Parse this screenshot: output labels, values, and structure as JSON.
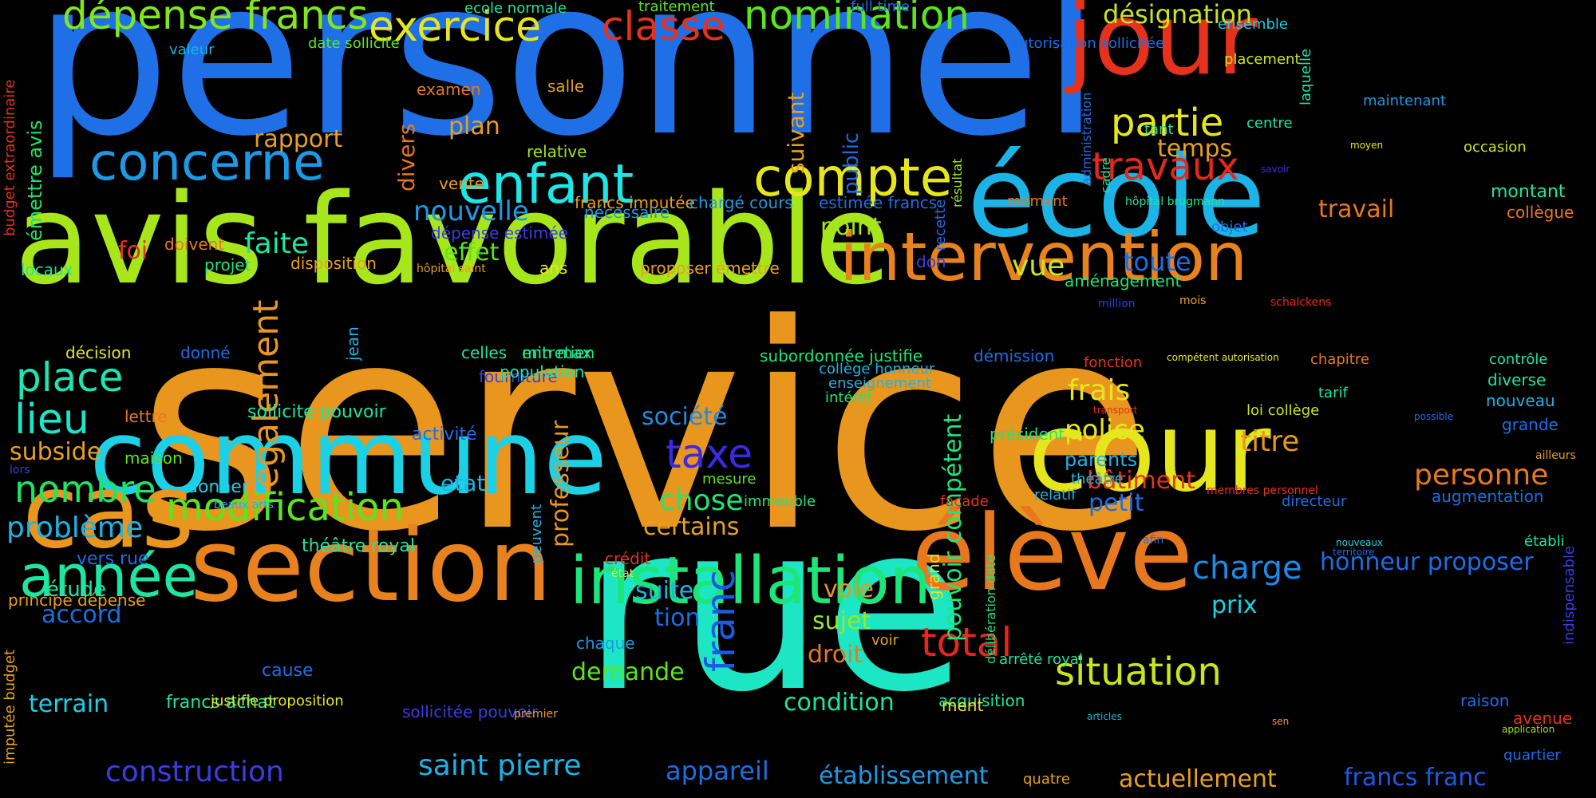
{
  "words": [
    {
      "text": "personnel",
      "color": "#1f6fe6"
    },
    {
      "text": "service",
      "color": "#e8961e"
    },
    {
      "text": "rue",
      "color": "#1ce6c4"
    },
    {
      "text": "avis favorable",
      "color": "#a8e61c"
    },
    {
      "text": "commune",
      "color": "#1cd0e6"
    },
    {
      "text": "section",
      "color": "#e8821e"
    },
    {
      "text": "cas",
      "color": "#e8961e"
    },
    {
      "text": "école",
      "color": "#1cb4e6"
    },
    {
      "text": "cour",
      "color": "#e6e61c"
    },
    {
      "text": "élève",
      "color": "#e8781e"
    },
    {
      "text": "jour",
      "color": "#e6321c"
    },
    {
      "text": "intervention",
      "color": "#e8821e"
    },
    {
      "text": "installation",
      "color": "#1ce678"
    },
    {
      "text": "enfant",
      "color": "#1ce6e6"
    },
    {
      "text": "compte",
      "color": "#e6e61c"
    },
    {
      "text": "année",
      "color": "#1ce6a0"
    },
    {
      "text": "concerne",
      "color": "#1c9ae6"
    },
    {
      "text": "modification",
      "color": "#5ae61c"
    },
    {
      "text": "dépense francs",
      "color": "#82e61c"
    },
    {
      "text": "exercice",
      "color": "#e6e61c"
    },
    {
      "text": "classe",
      "color": "#e6321c"
    },
    {
      "text": "nomination",
      "color": "#5ae61c"
    },
    {
      "text": "désignation",
      "color": "#c8e61c"
    },
    {
      "text": "partie",
      "color": "#e6e61c"
    },
    {
      "text": "travaux",
      "color": "#e6281c"
    },
    {
      "text": "situation",
      "color": "#c8e61c"
    },
    {
      "text": "total",
      "color": "#e6281c"
    },
    {
      "text": "place",
      "color": "#1ce6b4"
    },
    {
      "text": "lieu",
      "color": "#1ce6c8"
    },
    {
      "text": "nombre",
      "color": "#1ce664"
    },
    {
      "text": "problème",
      "color": "#1cb4e6"
    },
    {
      "text": "également",
      "color": "#e8961e"
    },
    {
      "text": "taxe",
      "color": "#3c28e6"
    },
    {
      "text": "franc",
      "color": "#1c5ae6"
    },
    {
      "text": "frais",
      "color": "#e6e61c"
    },
    {
      "text": "police",
      "color": "#e6e61c"
    },
    {
      "text": "titre",
      "color": "#e8961e"
    },
    {
      "text": "personne",
      "color": "#e8781e"
    },
    {
      "text": "charge",
      "color": "#1c8ce6"
    },
    {
      "text": "construction",
      "color": "#3c3ce6"
    },
    {
      "text": "saint pierre",
      "color": "#1cb4e6"
    },
    {
      "text": "appareil",
      "color": "#1c6ee6"
    },
    {
      "text": "établissement",
      "color": "#1c9ae6"
    },
    {
      "text": "actuellement",
      "color": "#e8a01e"
    },
    {
      "text": "francs franc",
      "color": "#1c5ae6"
    },
    {
      "text": "condition",
      "color": "#1ce6a0"
    },
    {
      "text": "demande",
      "color": "#5ae61c"
    },
    {
      "text": "droit",
      "color": "#e8781e"
    },
    {
      "text": "sujet",
      "color": "#a0e61c"
    },
    {
      "text": "voie",
      "color": "#e8961e"
    },
    {
      "text": "chose",
      "color": "#1ce678"
    },
    {
      "text": "certains",
      "color": "#e8a01e"
    },
    {
      "text": "société",
      "color": "#1c8ce6"
    },
    {
      "text": "etat",
      "color": "#1cb4e6"
    },
    {
      "text": "professeur",
      "color": "#e8961e"
    },
    {
      "text": "pouvoir compétent",
      "color": "#1ce678"
    },
    {
      "text": "suite",
      "color": "#1cb4e6"
    },
    {
      "text": "tion",
      "color": "#1c6ee6"
    },
    {
      "text": "prix",
      "color": "#1cd0e6"
    },
    {
      "text": "honneur proposer",
      "color": "#1c6ee6"
    },
    {
      "text": "bâtiment",
      "color": "#e6321c"
    },
    {
      "text": "petit",
      "color": "#1c6ee6"
    },
    {
      "text": "parents",
      "color": "#1cb4e6"
    },
    {
      "text": "vue",
      "color": "#c8e61c"
    },
    {
      "text": "toute",
      "color": "#1c6ee6"
    },
    {
      "text": "travail",
      "color": "#e8781e"
    },
    {
      "text": "point",
      "color": "#a0e61c"
    },
    {
      "text": "public",
      "color": "#1c6ee6"
    },
    {
      "text": "suivant",
      "color": "#e8a01e"
    },
    {
      "text": "divers",
      "color": "#e8781e"
    },
    {
      "text": "temps",
      "color": "#e8a01e"
    },
    {
      "text": "rapport",
      "color": "#e8a01e"
    },
    {
      "text": "plan",
      "color": "#e8a01e"
    },
    {
      "text": "faite",
      "color": "#1ce6a0"
    },
    {
      "text": "effet",
      "color": "#5ae61c"
    },
    {
      "text": "nouvelle",
      "color": "#1c9ae6"
    },
    {
      "text": "foi",
      "color": "#e6321c"
    },
    {
      "text": "subside",
      "color": "#e8a01e"
    },
    {
      "text": "accord",
      "color": "#1c6ee6"
    },
    {
      "text": "terrain",
      "color": "#1cd0e6"
    },
    {
      "text": "étude",
      "color": "#1ce6a0"
    },
    {
      "text": "émettre avis",
      "color": "#1ce664"
    },
    {
      "text": "budget extraordinaire",
      "color": "#e6321c"
    },
    {
      "text": "valeur",
      "color": "#1cb4e6"
    },
    {
      "text": "date sollicite",
      "color": "#5ae61c"
    },
    {
      "text": "ecole normale",
      "color": "#1ce6a0"
    },
    {
      "text": "traitement",
      "color": "#5ae61c"
    },
    {
      "text": "full time",
      "color": "#1c6ee6"
    },
    {
      "text": "ensemble",
      "color": "#1cd0e6"
    },
    {
      "text": "autorisation sollicitée",
      "color": "#1c6ee6"
    },
    {
      "text": "placement",
      "color": "#c8e61c"
    },
    {
      "text": "maintenant",
      "color": "#1c9ae6"
    },
    {
      "text": "occasion",
      "color": "#c8e61c"
    },
    {
      "text": "centre",
      "color": "#1ce6a0"
    },
    {
      "text": "tant",
      "color": "#1ce6a0"
    },
    {
      "text": "moyen",
      "color": "#e6e61c"
    },
    {
      "text": "savoir",
      "color": "#3c28e6"
    },
    {
      "text": "montant",
      "color": "#1ce6a0"
    },
    {
      "text": "collègue",
      "color": "#e8781e"
    },
    {
      "text": "hôpital brugmann",
      "color": "#1ce6a0"
    },
    {
      "text": "objet",
      "color": "#1c6ee6"
    },
    {
      "text": "moment",
      "color": "#e8781e"
    },
    {
      "text": "million",
      "color": "#3c3ce6"
    },
    {
      "text": "mois",
      "color": "#e8a01e"
    },
    {
      "text": "schalckens",
      "color": "#e6281c"
    },
    {
      "text": "aménagement",
      "color": "#1ce678"
    },
    {
      "text": "compétent autorisation",
      "color": "#e6e61c"
    },
    {
      "text": "chapitre",
      "color": "#e8781e"
    },
    {
      "text": "fonction",
      "color": "#e6321c"
    },
    {
      "text": "contrôle",
      "color": "#1ce6a0"
    },
    {
      "text": "diverse",
      "color": "#1ce6a0"
    },
    {
      "text": "nouveau",
      "color": "#1cb4e6"
    },
    {
      "text": "grande",
      "color": "#1c6ee6"
    },
    {
      "text": "ailleurs",
      "color": "#e8a01e"
    },
    {
      "text": "tarif",
      "color": "#1ce6a0"
    },
    {
      "text": "transport",
      "color": "#e6321c"
    },
    {
      "text": "loi collège",
      "color": "#c8e61c"
    },
    {
      "text": "possible",
      "color": "#1c6ee6"
    },
    {
      "text": "augmentation",
      "color": "#1c6ee6"
    },
    {
      "text": "établi",
      "color": "#1ce6a0"
    },
    {
      "text": "directeur",
      "color": "#1c6ee6"
    },
    {
      "text": "membres personnel",
      "color": "#e6321c"
    },
    {
      "text": "théâtre",
      "color": "#1cb4e6"
    },
    {
      "text": "nouveaux",
      "color": "#1cd0e6"
    },
    {
      "text": "territoire",
      "color": "#1c6ee6"
    },
    {
      "text": "afin",
      "color": "#1c6ee6"
    },
    {
      "text": "raison",
      "color": "#1c6ee6"
    },
    {
      "text": "avenue",
      "color": "#e6321c"
    },
    {
      "text": "application",
      "color": "#a0e61c"
    },
    {
      "text": "quartier",
      "color": "#1c6ee6"
    },
    {
      "text": "sen",
      "color": "#e8a01e"
    },
    {
      "text": "indispensable",
      "color": "#3c3ce6"
    },
    {
      "text": "quatre",
      "color": "#e8a01e"
    },
    {
      "text": "articles",
      "color": "#1cb4e6"
    },
    {
      "text": "voir",
      "color": "#e8a01e"
    },
    {
      "text": "arrêté royal",
      "color": "#1ce6a0"
    },
    {
      "text": "relatif",
      "color": "#1cb4e6"
    },
    {
      "text": "acquisition",
      "color": "#1ce6a0"
    },
    {
      "text": "délibération date",
      "color": "#1ce678"
    },
    {
      "text": "grand",
      "color": "#e6e61c"
    },
    {
      "text": "ment",
      "color": "#e6e61c"
    },
    {
      "text": "président",
      "color": "#1ce678"
    },
    {
      "text": "façade",
      "color": "#e6321c"
    },
    {
      "text": "enseignement",
      "color": "#1cb4e6"
    },
    {
      "text": "collège honneur",
      "color": "#1cb4e6"
    },
    {
      "text": "intérêt",
      "color": "#1ce678"
    },
    {
      "text": "démission",
      "color": "#1c6ee6"
    },
    {
      "text": "subordonnée justifie",
      "color": "#1ce678"
    },
    {
      "text": "mesure",
      "color": "#5ae61c"
    },
    {
      "text": "immeuble",
      "color": "#1ce678"
    },
    {
      "text": "entretien",
      "color": "#1ce678"
    },
    {
      "text": "fourniture",
      "color": "#3c3ce6"
    },
    {
      "text": "min max",
      "color": "#1ce6a0"
    },
    {
      "text": "celles",
      "color": "#1ce6a0"
    },
    {
      "text": "population",
      "color": "#1ce6a0"
    },
    {
      "text": "ans",
      "color": "#e6e61c"
    },
    {
      "text": "proposer émettre",
      "color": "#e8a01e"
    },
    {
      "text": "francs imputée",
      "color": "#e8a01e"
    },
    {
      "text": "chargé cours",
      "color": "#1c9ae6"
    },
    {
      "text": "estimée francs",
      "color": "#1c6ee6"
    },
    {
      "text": "don",
      "color": "#3c3ce6"
    },
    {
      "text": "nécessaire",
      "color": "#1c9ae6"
    },
    {
      "text": "salle",
      "color": "#e8a01e"
    },
    {
      "text": "relative",
      "color": "#a0e61c"
    },
    {
      "text": "examen",
      "color": "#e8781e"
    },
    {
      "text": "recette",
      "color": "#1c6ee6"
    },
    {
      "text": "résultat",
      "color": "#a0e61c"
    },
    {
      "text": "administration",
      "color": "#1c6ee6"
    },
    {
      "text": "cadre",
      "color": "#1ce6a0"
    },
    {
      "text": "laquelle",
      "color": "#1ce6a0"
    },
    {
      "text": "vente",
      "color": "#e8a01e"
    },
    {
      "text": "dépense estimée",
      "color": "#3c3ce6"
    },
    {
      "text": "doivent",
      "color": "#e8781e"
    },
    {
      "text": "projet",
      "color": "#1ce678"
    },
    {
      "text": "disposition",
      "color": "#e8a01e"
    },
    {
      "text": "hôpital saint",
      "color": "#e8a01e"
    },
    {
      "text": "locaux",
      "color": "#1ce6a0"
    },
    {
      "text": "décision",
      "color": "#e6e61c"
    },
    {
      "text": "donné",
      "color": "#1c6ee6"
    },
    {
      "text": "jean",
      "color": "#1cb4e6"
    },
    {
      "text": "maison",
      "color": "#5ae61c"
    },
    {
      "text": "lors",
      "color": "#3c3ce6"
    },
    {
      "text": "lettre",
      "color": "#e8781e"
    },
    {
      "text": "sollicite pouvoir",
      "color": "#1ce6a0"
    },
    {
      "text": "activité",
      "color": "#1c6ee6"
    },
    {
      "text": "donner",
      "color": "#1cd0e6"
    },
    {
      "text": "beaux arts",
      "color": "#1cb4e6"
    },
    {
      "text": "peuvent",
      "color": "#1cb4e6"
    },
    {
      "text": "théâtre royal",
      "color": "#1ce6a0"
    },
    {
      "text": "vers rue",
      "color": "#1c6ee6"
    },
    {
      "text": "principe dépense",
      "color": "#e8a01e"
    },
    {
      "text": "crédit",
      "color": "#e6321c"
    },
    {
      "text": "état",
      "color": "#e6e61c"
    },
    {
      "text": "chaque",
      "color": "#1c9ae6"
    },
    {
      "text": "cause",
      "color": "#1c6ee6"
    },
    {
      "text": "francs achat",
      "color": "#1ce6a0"
    },
    {
      "text": "justifie proposition",
      "color": "#e6e61c"
    },
    {
      "text": "sollicitée pouvoir",
      "color": "#3c3ce6"
    },
    {
      "text": "premier",
      "color": "#e8a01e"
    },
    {
      "text": "imputée budget",
      "color": "#e8a01e"
    }
  ]
}
